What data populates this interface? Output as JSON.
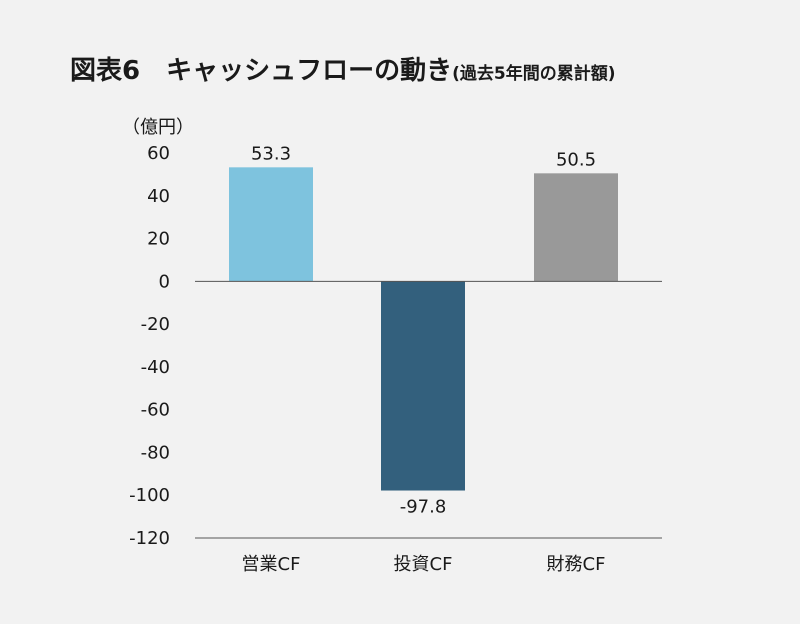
{
  "title": {
    "main": "図表6　キャッシュフローの動き",
    "sub": "(過去5年間の累計額)"
  },
  "chart_data": {
    "type": "bar",
    "unit_label": "（億円）",
    "categories": [
      "営業CF",
      "投資CF",
      "財務CF"
    ],
    "values": [
      53.3,
      -97.8,
      50.5
    ],
    "value_labels": [
      "53.3",
      "-97.8",
      "50.5"
    ],
    "colors": [
      "#7ec3de",
      "#33607d",
      "#999999"
    ],
    "ylim": [
      -120,
      60
    ],
    "yticks": [
      60,
      40,
      20,
      0,
      -20,
      -40,
      -60,
      -80,
      -100,
      -120
    ],
    "grid": false,
    "legend": "none"
  }
}
